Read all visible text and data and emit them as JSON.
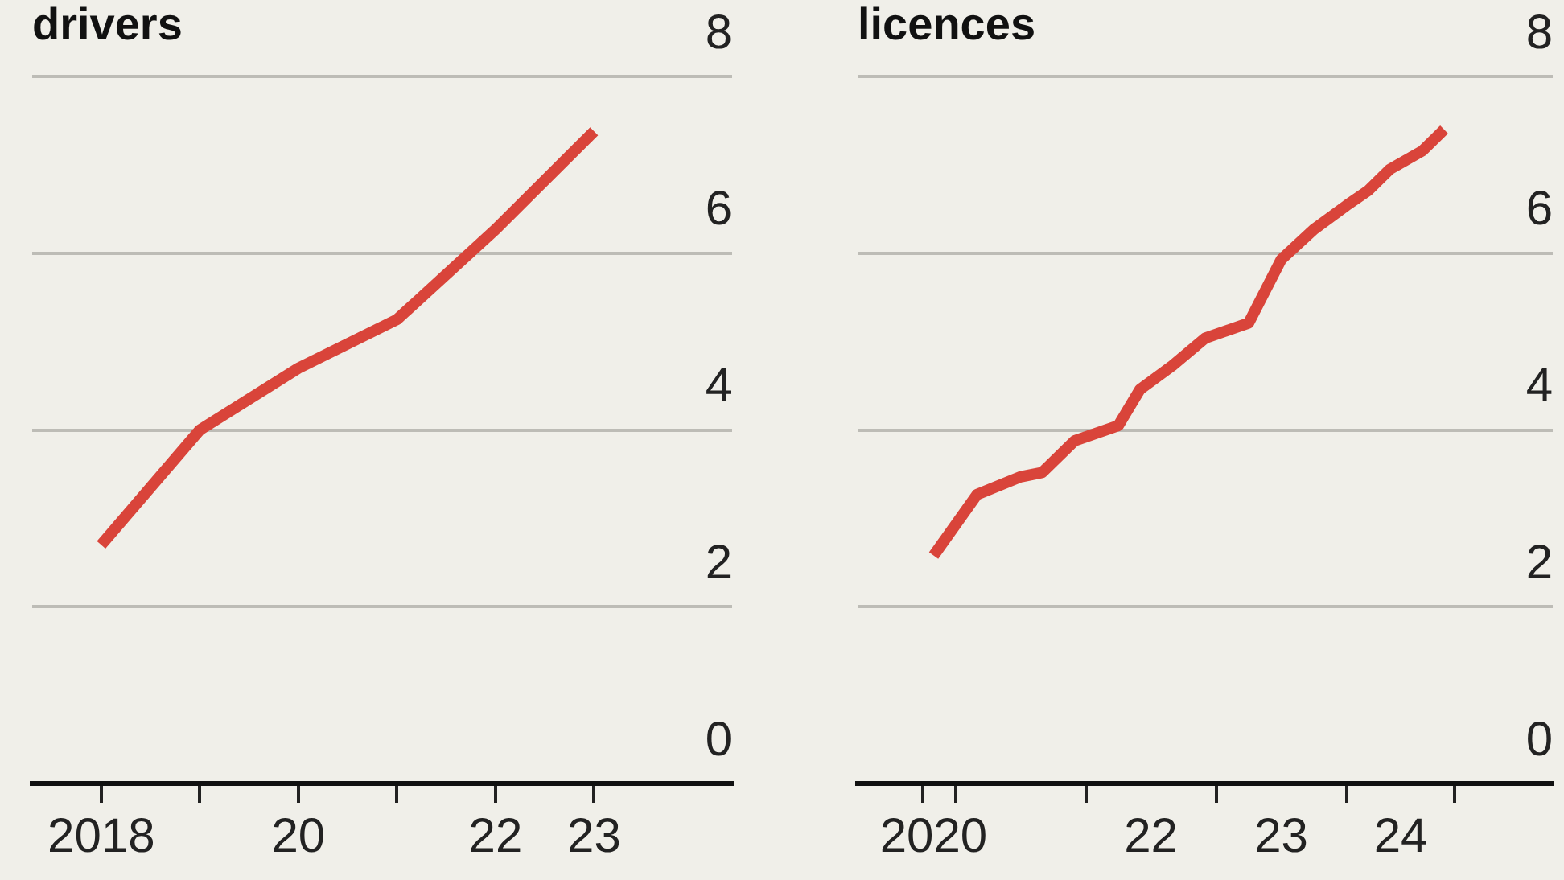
{
  "chart_data": [
    {
      "type": "line",
      "title": "drivers",
      "x": [
        2018,
        2019,
        2020,
        2021,
        2022,
        2023
      ],
      "series": [
        {
          "color": "#d9443a",
          "values": [
            2.7,
            4.0,
            4.7,
            5.25,
            6.27,
            7.38
          ]
        }
      ],
      "xlim": [
        2017.3,
        2024.4
      ],
      "xticks": [
        2018,
        {
          "value": 2019,
          "label": null
        },
        {
          "value": 2020,
          "label": "20"
        },
        {
          "value": 2021,
          "label": null
        },
        {
          "value": 2022,
          "label": "22"
        },
        {
          "value": 2023,
          "label": "23"
        }
      ],
      "ylim": [
        0,
        8
      ],
      "yticks": [
        0,
        2,
        4,
        6,
        8
      ],
      "grid": "y",
      "legend": false,
      "marker": "none",
      "line_style": "solid"
    },
    {
      "type": "line",
      "title": "licences",
      "x": [
        "2020-11",
        "2021-03",
        "2021-07",
        "2021-09",
        "2021-12",
        "2022-04",
        "2022-06",
        "2022-09",
        "2022-12",
        "2023-04",
        "2023-07",
        "2023-10",
        "2024-01",
        "2024-03",
        "2024-05",
        "2024-08",
        "2024-10"
      ],
      "series": [
        {
          "color": "#d9443a",
          "values": [
            2.58,
            3.27,
            3.47,
            3.52,
            3.88,
            4.05,
            4.46,
            4.73,
            5.04,
            5.21,
            5.93,
            6.27,
            6.54,
            6.71,
            6.95,
            7.16,
            7.4
          ]
        }
      ],
      "xlim": [
        "2020-04",
        "2025-08"
      ],
      "xticks": [
        {
          "value": "2020-10",
          "label": null
        },
        {
          "value": "2020-11",
          "label": "2020"
        },
        {
          "value": "2021",
          "label": null
        },
        {
          "value": "2022",
          "label": null
        },
        {
          "value": "2022-07",
          "label": "22"
        },
        {
          "value": "2023",
          "label": null
        },
        {
          "value": "2023-07",
          "label": "23"
        },
        {
          "value": "2024",
          "label": null
        },
        {
          "value": "2024-06",
          "label": "24"
        },
        {
          "value": "2024-11",
          "label": null
        }
      ],
      "ylim": [
        0,
        8
      ],
      "yticks": [
        0,
        2,
        4,
        6,
        8
      ],
      "grid": "y",
      "legend": false,
      "marker": "none",
      "line_style": "solid"
    }
  ]
}
